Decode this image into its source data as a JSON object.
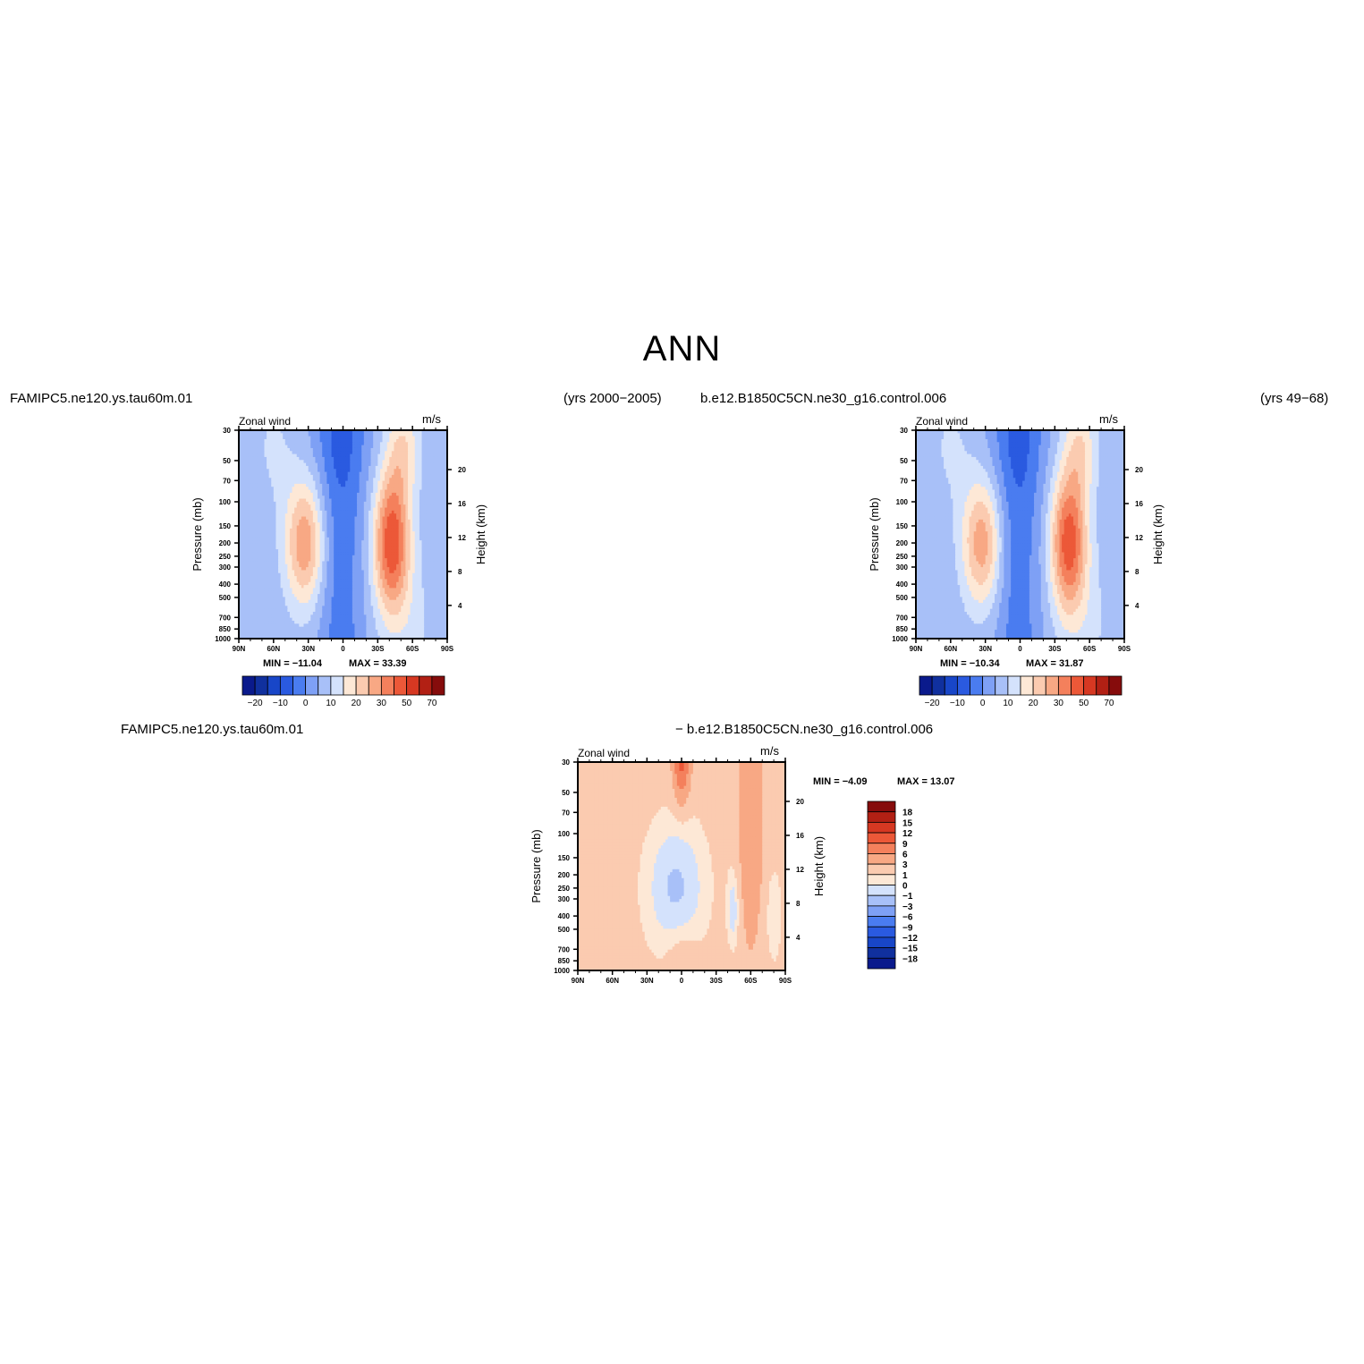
{
  "title": "ANN",
  "header": {
    "case1": "FAMIPC5.ne120.ys.tau60m.01",
    "case1_years": "(yrs 2000−2005)",
    "case2": "b.e12.B1850C5CN.ne30_g16.control.006",
    "case2_years": "(yrs 49−68)",
    "diff_left": "FAMIPC5.ne120.ys.tau60m.01",
    "diff_right": "− b.e12.B1850C5CN.ne30_g16.control.006"
  },
  "chart_data": [
    {
      "type": "heatmap",
      "id": "panel-1",
      "field_label": "Zonal wind",
      "units": "m/s",
      "ylabel": "Pressure (mb)",
      "ylabel_right": "Height (km)",
      "x_ticks": [
        "90N",
        "60N",
        "30N",
        "0",
        "30S",
        "60S",
        "90S"
      ],
      "y_ticks": [
        "30",
        "50",
        "70",
        "100",
        "150",
        "200",
        "250",
        "300",
        "400",
        "500",
        "700",
        "850",
        "1000"
      ],
      "height_ticks": [
        "4",
        "8",
        "12",
        "16",
        "20"
      ],
      "min_text": "MIN = −11.04",
      "max_text": "MAX = 33.39",
      "min": -11.04,
      "max": 33.39,
      "colorbar_ticks": [
        "−20",
        "−10",
        "0",
        "10",
        "20",
        "30",
        "50",
        "70"
      ],
      "jets": {
        "nh_peak": 23,
        "sh_peak": 33
      }
    },
    {
      "type": "heatmap",
      "id": "panel-2",
      "field_label": "Zonal wind",
      "units": "m/s",
      "ylabel": "Pressure (mb)",
      "ylabel_right": "Height (km)",
      "x_ticks": [
        "90N",
        "60N",
        "30N",
        "0",
        "30S",
        "60S",
        "90S"
      ],
      "y_ticks": [
        "30",
        "50",
        "70",
        "100",
        "150",
        "200",
        "250",
        "300",
        "400",
        "500",
        "700",
        "850",
        "1000"
      ],
      "height_ticks": [
        "4",
        "8",
        "12",
        "16",
        "20"
      ],
      "min_text": "MIN = −10.34",
      "max_text": "MAX = 31.87",
      "min": -10.34,
      "max": 31.87,
      "colorbar_ticks": [
        "−20",
        "−10",
        "0",
        "10",
        "20",
        "30",
        "50",
        "70"
      ],
      "jets": {
        "nh_peak": 22,
        "sh_peak": 32
      }
    },
    {
      "type": "heatmap",
      "id": "panel-diff",
      "field_label": "Zonal wind",
      "units": "m/s",
      "ylabel": "Pressure (mb)",
      "ylabel_right": "Height (km)",
      "x_ticks": [
        "90N",
        "60N",
        "30N",
        "0",
        "30S",
        "60S",
        "90S"
      ],
      "y_ticks": [
        "30",
        "50",
        "70",
        "100",
        "150",
        "200",
        "250",
        "300",
        "400",
        "500",
        "700",
        "850",
        "1000"
      ],
      "height_ticks": [
        "4",
        "8",
        "12",
        "16",
        "20"
      ],
      "min_text": "MIN = −4.09",
      "max_text": "MAX = 13.07",
      "min": -4.09,
      "max": 13.07,
      "colorbar_ticks": [
        "18",
        "15",
        "12",
        "9",
        "6",
        "3",
        "1",
        "0",
        "−1",
        "−3",
        "−6",
        "−9",
        "−12",
        "−15",
        "−18"
      ]
    }
  ],
  "colors": {
    "wind_scale": [
      "#0a1a8c",
      "#10309e",
      "#1846c8",
      "#2a5ae0",
      "#4a7cf0",
      "#7ea0f5",
      "#a8c0f8",
      "#d4e2fc",
      "#fde8d6",
      "#fbcbb0",
      "#f8a884",
      "#f4805c",
      "#ec5838",
      "#d63822",
      "#b22014",
      "#860c0c"
    ],
    "diff_scale": [
      "#860c0c",
      "#b22014",
      "#d63822",
      "#ec5838",
      "#f4805c",
      "#f8a884",
      "#fbcbb0",
      "#fde8d6",
      "#d4e2fc",
      "#a8c0f8",
      "#7ea0f5",
      "#4a7cf0",
      "#2a5ae0",
      "#1846c8",
      "#10309e",
      "#0a1a8c"
    ]
  }
}
